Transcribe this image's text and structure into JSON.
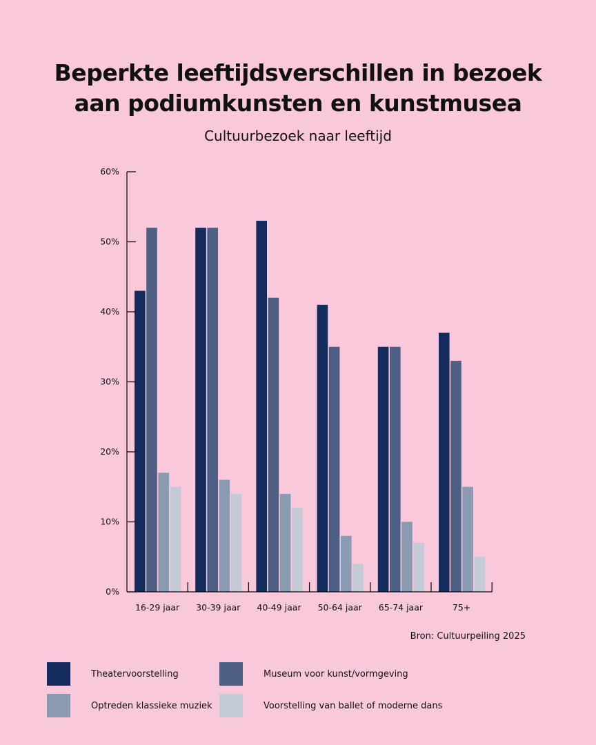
{
  "chart_data": {
    "type": "bar",
    "title": "Beperkte leeftijdsverschillen in bezoek aan podiumkunsten en kunstmusea",
    "subtitle": "Cultuurbezoek naar leeftijd",
    "categories": [
      "16-29 jaar",
      "30-39 jaar",
      "40-49 jaar",
      "50-64 jaar",
      "65-74 jaar",
      "75+"
    ],
    "series": [
      {
        "name": "Theatervoorstelling",
        "color": "#132c5c",
        "values": [
          43,
          52,
          53,
          41,
          35,
          37
        ]
      },
      {
        "name": "Museum voor kunst/vormgeving",
        "color": "#4d5f85",
        "values": [
          52,
          52,
          42,
          35,
          35,
          33
        ]
      },
      {
        "name": "Optreden klassieke muziek",
        "color": "#8a9ab0",
        "values": [
          17,
          16,
          14,
          8,
          10,
          15
        ]
      },
      {
        "name": "Voorstelling van ballet of moderne dans",
        "color": "#c4cad6",
        "values": [
          15,
          14,
          12,
          4,
          7,
          5
        ]
      }
    ],
    "ylim": [
      0,
      60
    ],
    "yticks": [
      "0%",
      "10%",
      "20%",
      "30%",
      "40%",
      "50%",
      "60%"
    ],
    "grid": false,
    "legend_placement": "bottom",
    "source": "Bron: Cultuurpeiling 2025"
  }
}
